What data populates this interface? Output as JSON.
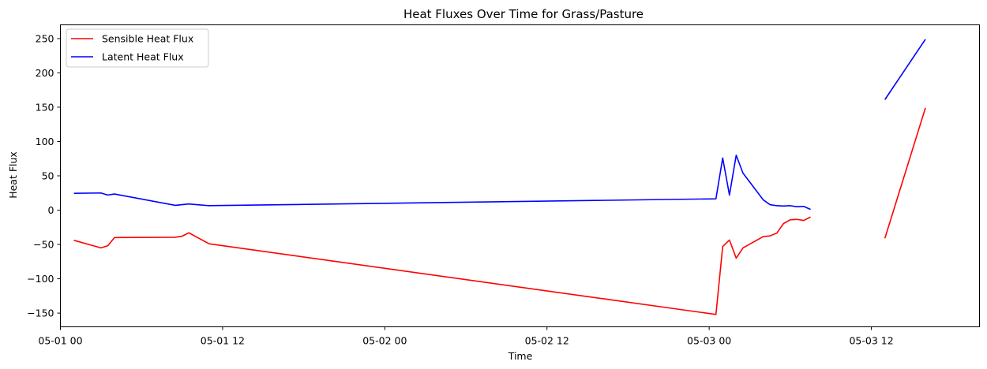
{
  "chart_data": {
    "type": "line",
    "title": "Heat Fluxes Over Time for Grass/Pasture",
    "xlabel": "Time",
    "ylabel": "Heat Flux",
    "x_type": "datetime",
    "xlim": [
      "2024-05-01T00:00",
      "2024-05-03T20:00"
    ],
    "ylim": [
      -170,
      270
    ],
    "x_ticks": [
      "2024-05-01T00:00",
      "2024-05-01T12:00",
      "2024-05-02T00:00",
      "2024-05-02T12:00",
      "2024-05-03T00:00",
      "2024-05-03T12:00"
    ],
    "x_tick_labels": [
      "05-01 00",
      "05-01 12",
      "05-02 00",
      "05-02 12",
      "05-03 00",
      "05-03 12"
    ],
    "y_ticks": [
      -150,
      -100,
      -50,
      0,
      50,
      100,
      150,
      200,
      250
    ],
    "y_tick_labels": [
      "−150",
      "−100",
      "−50",
      "0",
      "50",
      "100",
      "150",
      "200",
      "250"
    ],
    "grid": false,
    "legend_position": "top-left",
    "series": [
      {
        "name": "Sensible Heat Flux",
        "color": "#ff0000",
        "segments": [
          [
            [
              "2024-05-01T01:00",
              -44
            ],
            [
              "2024-05-01T03:00",
              -55
            ],
            [
              "2024-05-01T03:30",
              -52
            ],
            [
              "2024-05-01T04:00",
              -40
            ],
            [
              "2024-05-01T08:30",
              -39.5
            ],
            [
              "2024-05-01T09:00",
              -38
            ],
            [
              "2024-05-01T09:30",
              -33
            ],
            [
              "2024-05-01T11:00",
              -49
            ],
            [
              "2024-05-03T00:30",
              -152
            ],
            [
              "2024-05-03T01:00",
              -53
            ],
            [
              "2024-05-03T01:30",
              -43.5
            ],
            [
              "2024-05-03T02:00",
              -70
            ],
            [
              "2024-05-03T02:30",
              -55
            ],
            [
              "2024-05-03T04:00",
              -38.5
            ],
            [
              "2024-05-03T04:30",
              -37.5
            ],
            [
              "2024-05-03T05:00",
              -33.5
            ],
            [
              "2024-05-03T05:30",
              -19.5
            ],
            [
              "2024-05-03T06:00",
              -14
            ],
            [
              "2024-05-03T06:30",
              -13.5
            ],
            [
              "2024-05-03T07:00",
              -15
            ],
            [
              "2024-05-03T07:30",
              -10
            ]
          ],
          [
            [
              "2024-05-03T13:00",
              -41
            ],
            [
              "2024-05-03T16:00",
              149
            ]
          ]
        ]
      },
      {
        "name": "Latent Heat Flux",
        "color": "#0000ff",
        "segments": [
          [
            [
              "2024-05-01T01:00",
              24.5
            ],
            [
              "2024-05-01T03:00",
              25
            ],
            [
              "2024-05-01T03:30",
              22
            ],
            [
              "2024-05-01T04:00",
              23.5
            ],
            [
              "2024-05-01T08:30",
              7
            ],
            [
              "2024-05-01T09:30",
              9
            ],
            [
              "2024-05-01T11:00",
              6.5
            ],
            [
              "2024-05-03T00:30",
              16.5
            ],
            [
              "2024-05-03T01:00",
              76
            ],
            [
              "2024-05-03T01:30",
              22
            ],
            [
              "2024-05-03T02:00",
              80
            ],
            [
              "2024-05-03T02:30",
              54
            ],
            [
              "2024-05-03T04:00",
              15
            ],
            [
              "2024-05-03T04:30",
              8
            ],
            [
              "2024-05-03T05:00",
              6.5
            ],
            [
              "2024-05-03T05:30",
              6
            ],
            [
              "2024-05-03T06:00",
              6.5
            ],
            [
              "2024-05-03T06:30",
              5
            ],
            [
              "2024-05-03T07:00",
              5.5
            ],
            [
              "2024-05-03T07:30",
              1
            ]
          ],
          [
            [
              "2024-05-03T13:00",
              161
            ],
            [
              "2024-05-03T16:00",
              249
            ]
          ]
        ]
      }
    ]
  }
}
